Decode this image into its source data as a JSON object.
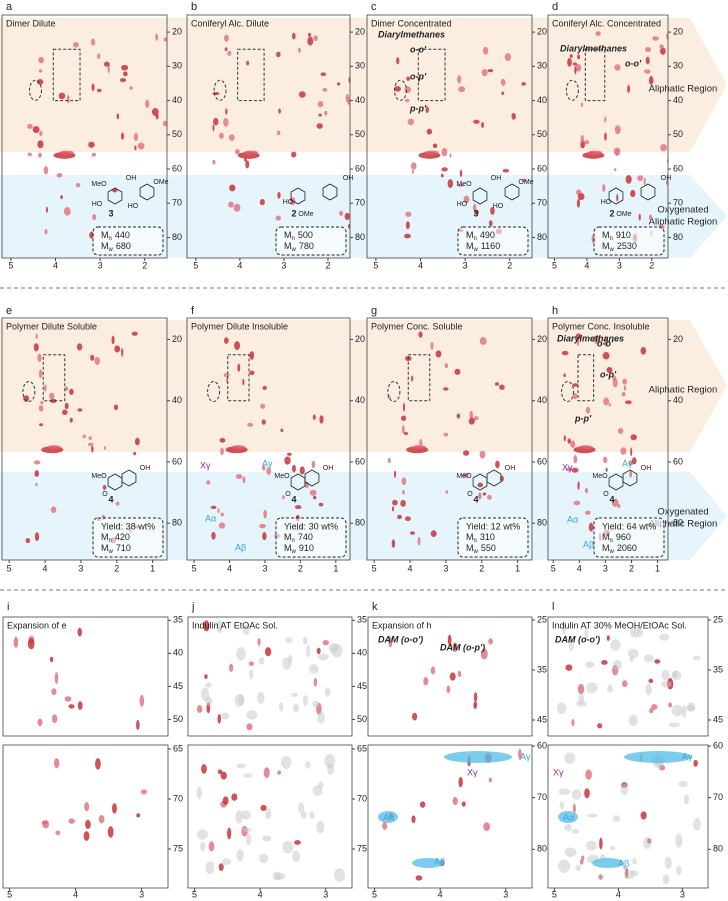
{
  "symbols": {
    "M": "M",
    "n": "n",
    "w": "w"
  },
  "regions": {
    "aliphatic": "Aliphatic Region",
    "oxygenated": [
      "Oxygenated",
      "Aliphatic Region"
    ]
  },
  "structures": {
    "2": [
      "OH",
      "HO",
      "OMe"
    ],
    "3": [
      "MeO",
      "HO",
      "OH",
      "OMe",
      "HO"
    ],
    "4": [
      "MeO",
      "O",
      "OH"
    ]
  },
  "panels": [
    {
      "letter": "a",
      "title": "Dimer Dilute",
      "compound": "3",
      "mn": 440,
      "mw": 680,
      "xlim": [
        5.2,
        1.5
      ],
      "xticks": [
        5,
        4,
        3,
        2
      ],
      "plots": [
        {
          "ylim": [
            15,
            86
          ],
          "yticks": [
            20,
            30,
            40,
            50,
            60,
            70,
            80
          ]
        }
      ]
    },
    {
      "letter": "b",
      "title": "Coniferyl Alc. Dilute",
      "compound": "2",
      "mn": 500,
      "mw": 780,
      "xlim": [
        5.2,
        1.5
      ],
      "xticks": [
        5,
        4,
        3,
        2
      ],
      "plots": [
        {
          "ylim": [
            15,
            86
          ],
          "yticks": [
            20,
            30,
            40,
            50,
            60,
            70,
            80
          ]
        }
      ]
    },
    {
      "letter": "c",
      "title": "Dimer Concentrated",
      "compound": "3",
      "mn": 490,
      "mw": 1160,
      "annotations": [
        "Diarylmethanes",
        "o-o'",
        "o-p'",
        "p-p'"
      ],
      "xlim": [
        5.2,
        1.5
      ],
      "xticks": [
        5,
        4,
        3,
        2
      ],
      "plots": [
        {
          "ylim": [
            15,
            86
          ],
          "yticks": [
            20,
            30,
            40,
            50,
            60,
            70,
            80
          ]
        }
      ]
    },
    {
      "letter": "d",
      "title": "Coniferyl Alc. Concentrated",
      "compound": "2",
      "mn": 910,
      "mw": 2530,
      "annotations": [
        "Diarylmethanes",
        "o-o'"
      ],
      "xlim": [
        5.2,
        1.5
      ],
      "xticks": [
        5,
        4,
        3,
        2
      ],
      "plots": [
        {
          "ylim": [
            15,
            86
          ],
          "yticks": [
            20,
            30,
            40,
            50,
            60,
            70,
            80
          ]
        }
      ]
    },
    {
      "letter": "e",
      "title": "Polymer Dilute Soluble",
      "compound": "4",
      "yield": "Yield: 38 wt%",
      "mn": 420,
      "mw": 710,
      "xlim": [
        5.2,
        0.6
      ],
      "xticks": [
        5,
        4,
        3,
        2,
        1
      ],
      "plots": [
        {
          "ylim": [
            13,
            92
          ],
          "yticks": [
            20,
            40,
            60,
            80
          ]
        }
      ]
    },
    {
      "letter": "f",
      "title": "Polymer Dilute Insoluble",
      "compound": "4",
      "yield": "Yield: 30 wt%",
      "mn": 740,
      "mw": 910,
      "annotations": [
        "Xγ",
        "Aγ",
        "Aα",
        "Aβ"
      ],
      "xlim": [
        5.2,
        0.6
      ],
      "xticks": [
        5,
        4,
        3,
        2,
        1
      ],
      "plots": [
        {
          "ylim": [
            13,
            92
          ],
          "yticks": [
            20,
            40,
            60,
            80
          ]
        }
      ]
    },
    {
      "letter": "g",
      "title": "Polymer Conc. Soluble",
      "compound": "4",
      "yield": "Yield: 12 wt%",
      "mn": 310,
      "mw": 550,
      "xlim": [
        5.2,
        0.6
      ],
      "xticks": [
        5,
        4,
        3,
        2,
        1
      ],
      "plots": [
        {
          "ylim": [
            13,
            92
          ],
          "yticks": [
            20,
            40,
            60,
            80
          ]
        }
      ]
    },
    {
      "letter": "h",
      "title": "Polymer Conc. Insoluble",
      "compound": "4",
      "yield": "Yield: 64 wt%",
      "mn": 960,
      "mw": 2060,
      "annotations": [
        "Diarylmethanes",
        "o-o'",
        "o-p'",
        "p-p'",
        "Xγ",
        "Aγ",
        "Aα",
        "Aβ"
      ],
      "xlim": [
        5.2,
        0.6
      ],
      "xticks": [
        5,
        4,
        3,
        2,
        1
      ],
      "plots": [
        {
          "ylim": [
            13,
            92
          ],
          "yticks": [
            20,
            40,
            60,
            80
          ]
        }
      ]
    },
    {
      "letter": "i",
      "title": "Expansion of e",
      "xlim": [
        5.1,
        2.6
      ],
      "xticks": [
        5,
        4,
        3
      ],
      "plots": [
        {
          "ylim": [
            34.5,
            52.5
          ],
          "yticks": [
            35,
            40,
            45,
            50
          ]
        },
        {
          "ylim": [
            64.6,
            78.9
          ],
          "yticks": [
            65,
            70,
            75
          ]
        }
      ]
    },
    {
      "letter": "j",
      "title": "Indulin AT EtOAc Sol.",
      "xlim": [
        5.1,
        2.6
      ],
      "xticks": [
        5,
        4,
        3
      ],
      "plots": [
        {
          "ylim": [
            34.5,
            52.5
          ],
          "yticks": [
            35,
            40,
            45,
            50
          ]
        },
        {
          "ylim": [
            64.6,
            78.9
          ],
          "yticks": [
            65,
            70,
            75
          ]
        }
      ]
    },
    {
      "letter": "k",
      "title": "Expansion of h",
      "annotations": [
        "DAM (o-o')",
        "DAM (o-p')",
        "Xγ",
        "Aγ",
        "Aα",
        "Aβ"
      ],
      "xlim": [
        5.1,
        2.6
      ],
      "xticks": [
        5,
        4,
        3
      ],
      "plots": [
        {
          "ylim": [
            24.4,
            48.2
          ],
          "yticks": [
            25,
            35,
            45
          ]
        },
        {
          "ylim": [
            59.8,
            87.5
          ],
          "yticks": [
            60,
            70,
            80
          ]
        }
      ]
    },
    {
      "letter": "l",
      "title": "Indulin AT 30% MeOH/EtOAc Sol.",
      "annotations": [
        "DAM (o-o')",
        "Xγ",
        "Aγ",
        "Aα",
        "Aβ"
      ],
      "xlim": [
        5.1,
        2.6
      ],
      "xticks": [
        5,
        4,
        3
      ],
      "plots": [
        {
          "ylim": [
            24.4,
            48.2
          ],
          "yticks": [
            25,
            35,
            45
          ]
        },
        {
          "ylim": [
            59.8,
            87.5
          ],
          "yticks": [
            60,
            70,
            80
          ]
        }
      ]
    }
  ]
}
